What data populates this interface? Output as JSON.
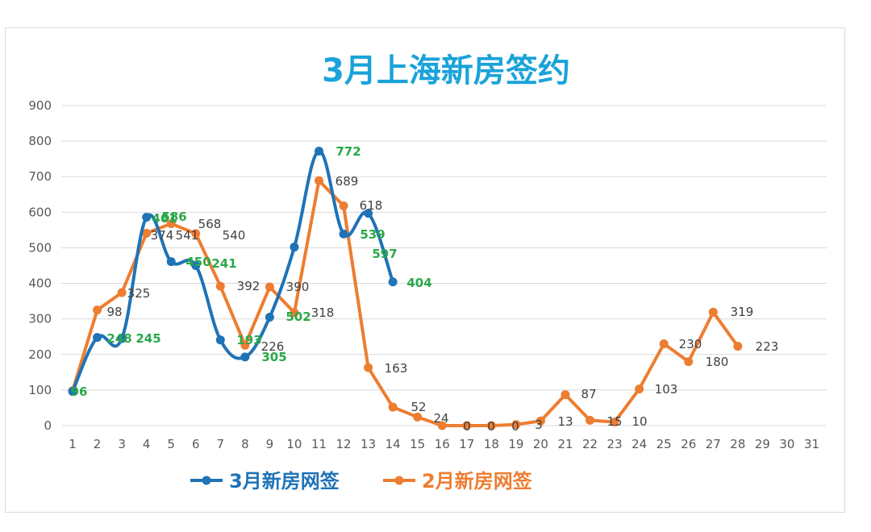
{
  "chart_data": {
    "type": "line",
    "title": "3月上海新房签约",
    "xlabel": "",
    "ylabel": "",
    "categories": [
      "1",
      "2",
      "3",
      "4",
      "5",
      "6",
      "7",
      "8",
      "9",
      "10",
      "11",
      "12",
      "13",
      "14",
      "15",
      "16",
      "17",
      "18",
      "19",
      "20",
      "21",
      "22",
      "23",
      "24",
      "25",
      "26",
      "27",
      "28",
      "29",
      "30",
      "31"
    ],
    "ylim": [
      0,
      900
    ],
    "yticks": [
      0,
      100,
      200,
      300,
      400,
      500,
      600,
      700,
      800,
      900
    ],
    "grid": "horizontal",
    "legend_position": "bottom",
    "series": [
      {
        "name": "3月新房网签",
        "color": "#1f73b7",
        "label_color": "#2aa84a",
        "values": [
          96,
          248,
          245,
          586,
          461,
          450,
          241,
          193,
          305,
          502,
          772,
          539,
          597,
          404,
          null,
          null,
          null,
          null,
          null,
          null,
          null,
          null,
          null,
          null,
          null,
          null,
          null,
          null,
          null,
          null,
          null
        ]
      },
      {
        "name": "2月新房网签",
        "color": "#ed7d31",
        "label_color": "#404040",
        "values": [
          98,
          325,
          374,
          541,
          568,
          540,
          392,
          226,
          390,
          318,
          689,
          618,
          163,
          52,
          24,
          0,
          0,
          0,
          3,
          13,
          87,
          15,
          10,
          103,
          230,
          180,
          319,
          223,
          null,
          null,
          null
        ]
      }
    ]
  }
}
